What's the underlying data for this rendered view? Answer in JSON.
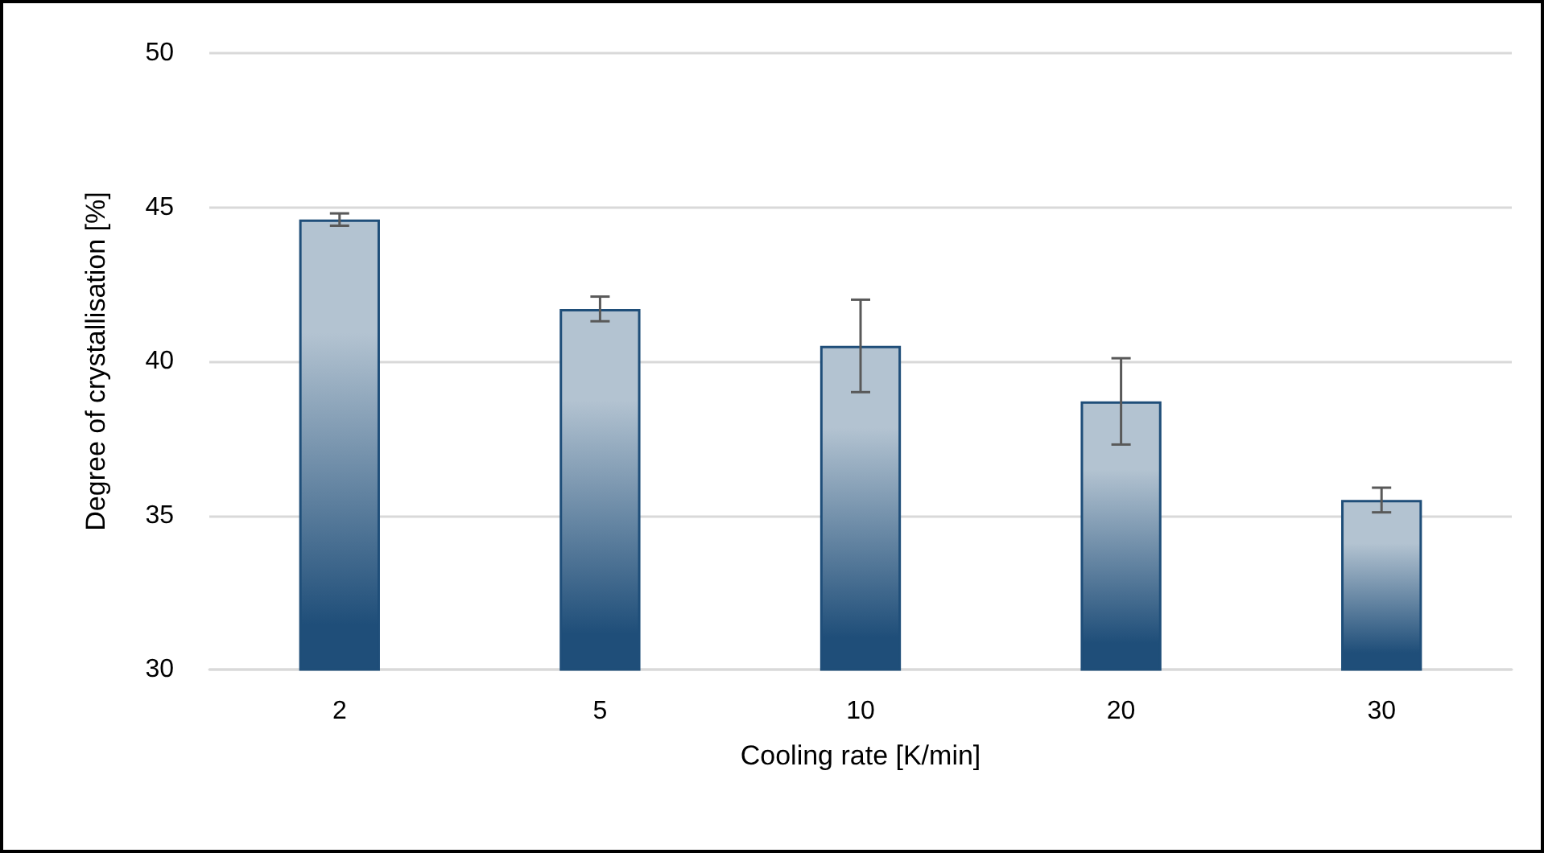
{
  "chart_data": {
    "type": "bar",
    "xlabel": "Cooling rate [K/min]",
    "ylabel": "Degree of crystallisation [%]",
    "categories": [
      "2",
      "5",
      "10",
      "20",
      "30"
    ],
    "series": [
      {
        "color": "#1f4e79",
        "values": [
          44.6,
          41.7,
          40.5,
          38.7,
          35.5
        ],
        "errors": [
          0.2,
          0.4,
          1.5,
          1.4,
          0.4
        ]
      }
    ],
    "ylim": [
      30,
      50
    ],
    "yticks": [
      30,
      35,
      40,
      45,
      50
    ],
    "grid": "y"
  }
}
